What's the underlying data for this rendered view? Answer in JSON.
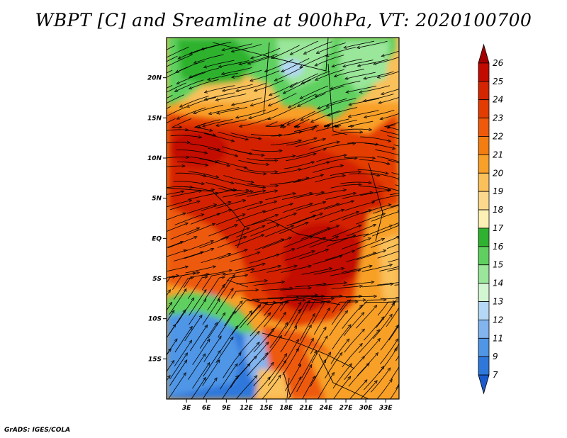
{
  "title": "WBPT [C] and Sreamline at 900hPa, VT: 2020100700",
  "credit": "GrADS: IGES/COLA",
  "map": {
    "lon_range": [
      0,
      35
    ],
    "lat_range": [
      -20,
      25
    ],
    "lat_ticks": [
      {
        "lat": 20,
        "label": "20N"
      },
      {
        "lat": 15,
        "label": "15N"
      },
      {
        "lat": 10,
        "label": "10N"
      },
      {
        "lat": 5,
        "label": "5N"
      },
      {
        "lat": 0,
        "label": "EQ"
      },
      {
        "lat": -5,
        "label": "5S"
      },
      {
        "lat": -10,
        "label": "10S"
      },
      {
        "lat": -15,
        "label": "15S"
      }
    ],
    "lon_ticks": [
      {
        "lon": 3,
        "label": "3E"
      },
      {
        "lon": 6,
        "label": "6E"
      },
      {
        "lon": 9,
        "label": "9E"
      },
      {
        "lon": 12,
        "label": "12E"
      },
      {
        "lon": 15,
        "label": "15E"
      },
      {
        "lon": 18,
        "label": "18E"
      },
      {
        "lon": 21,
        "label": "21E"
      },
      {
        "lon": 24,
        "label": "24E"
      },
      {
        "lon": 27,
        "label": "27E"
      },
      {
        "lon": 30,
        "label": "30E"
      },
      {
        "lon": 33,
        "label": "33E"
      }
    ]
  },
  "colorbar": {
    "levels": [
      "26",
      "25",
      "24",
      "23",
      "22",
      "21",
      "20",
      "19",
      "18",
      "17",
      "16",
      "15",
      "14",
      "13",
      "12",
      "11",
      "9",
      "7"
    ],
    "colors": [
      "#a50000",
      "#c20a00",
      "#d42400",
      "#e33c00",
      "#ee5a0a",
      "#f37d10",
      "#f8a028",
      "#fac05a",
      "#fcd88c",
      "#fcf0b4",
      "#2fb22f",
      "#5fd05f",
      "#9ae69a",
      "#d2f5d2",
      "#b4d8f5",
      "#82b4ee",
      "#5096e6",
      "#2e78dc",
      "#1a5acc"
    ]
  }
}
